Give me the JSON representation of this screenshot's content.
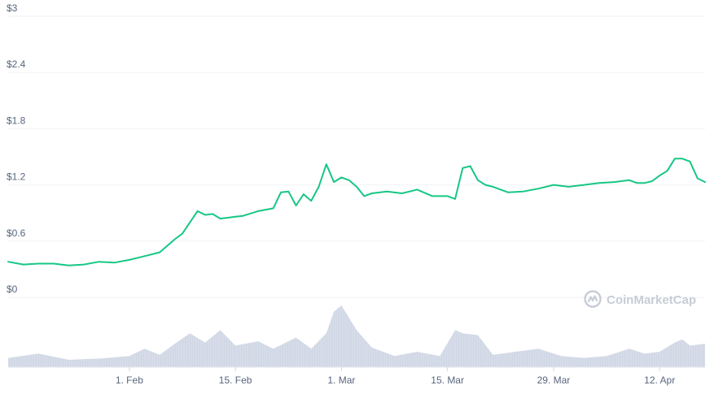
{
  "watermark": {
    "text": "CoinMarketCap"
  },
  "colors": {
    "line": "#16c784",
    "volume": "#cfd6e4",
    "grid": "#eff2f5",
    "label": "#58667e",
    "watermark": "#c7cdd6"
  },
  "chart_data": {
    "type": "line",
    "title": "",
    "xlabel": "",
    "ylabel": "",
    "ylim": [
      0,
      3
    ],
    "y_ticks": [
      "$3",
      "$2.4",
      "$1.8",
      "$1.2",
      "$0.6",
      "$0"
    ],
    "x_range": [
      "2021-01-16",
      "2021-04-18"
    ],
    "x_ticks": [
      {
        "date": "2021-02-01",
        "label": "1. Feb"
      },
      {
        "date": "2021-02-15",
        "label": "15. Feb"
      },
      {
        "date": "2021-03-01",
        "label": "1. Mar"
      },
      {
        "date": "2021-03-15",
        "label": "15. Mar"
      },
      {
        "date": "2021-03-29",
        "label": "29. Mar"
      },
      {
        "date": "2021-04-12",
        "label": "12. Apr"
      }
    ],
    "grid": true,
    "series": [
      {
        "name": "",
        "x": [
          "2021-01-16",
          "2021-01-18",
          "2021-01-20",
          "2021-01-22",
          "2021-01-24",
          "2021-01-26",
          "2021-01-28",
          "2021-01-30",
          "2021-02-01",
          "2021-02-03",
          "2021-02-05",
          "2021-02-07",
          "2021-02-08",
          "2021-02-09",
          "2021-02-10",
          "2021-02-11",
          "2021-02-12",
          "2021-02-13",
          "2021-02-14",
          "2021-02-15",
          "2021-02-16",
          "2021-02-18",
          "2021-02-20",
          "2021-02-21",
          "2021-02-22",
          "2021-02-23",
          "2021-02-24",
          "2021-02-25",
          "2021-02-26",
          "2021-02-27",
          "2021-02-28",
          "2021-03-01",
          "2021-03-02",
          "2021-03-03",
          "2021-03-04",
          "2021-03-05",
          "2021-03-07",
          "2021-03-09",
          "2021-03-11",
          "2021-03-13",
          "2021-03-15",
          "2021-03-16",
          "2021-03-17",
          "2021-03-18",
          "2021-03-19",
          "2021-03-20",
          "2021-03-21",
          "2021-03-23",
          "2021-03-25",
          "2021-03-27",
          "2021-03-29",
          "2021-03-31",
          "2021-04-02",
          "2021-04-04",
          "2021-04-06",
          "2021-04-08",
          "2021-04-09",
          "2021-04-10",
          "2021-04-11",
          "2021-04-12",
          "2021-04-13",
          "2021-04-14",
          "2021-04-15",
          "2021-04-16",
          "2021-04-17",
          "2021-04-18"
        ],
        "y": [
          0.38,
          0.35,
          0.36,
          0.36,
          0.34,
          0.35,
          0.38,
          0.37,
          0.4,
          0.44,
          0.48,
          0.62,
          0.68,
          0.8,
          0.92,
          0.88,
          0.89,
          0.84,
          0.85,
          0.86,
          0.87,
          0.92,
          0.95,
          1.12,
          1.13,
          0.98,
          1.1,
          1.03,
          1.18,
          1.42,
          1.23,
          1.28,
          1.25,
          1.18,
          1.08,
          1.11,
          1.13,
          1.11,
          1.15,
          1.08,
          1.08,
          1.05,
          1.38,
          1.4,
          1.25,
          1.2,
          1.18,
          1.12,
          1.13,
          1.16,
          1.2,
          1.18,
          1.2,
          1.22,
          1.23,
          1.25,
          1.22,
          1.22,
          1.24,
          1.3,
          1.35,
          1.48,
          1.48,
          1.45,
          1.27,
          1.23
        ]
      }
    ],
    "volume": {
      "x": [
        "2021-01-16",
        "2021-01-20",
        "2021-01-24",
        "2021-01-28",
        "2021-02-01",
        "2021-02-03",
        "2021-02-05",
        "2021-02-07",
        "2021-02-09",
        "2021-02-11",
        "2021-02-13",
        "2021-02-15",
        "2021-02-18",
        "2021-02-20",
        "2021-02-23",
        "2021-02-25",
        "2021-02-27",
        "2021-02-28",
        "2021-03-01",
        "2021-03-03",
        "2021-03-05",
        "2021-03-08",
        "2021-03-11",
        "2021-03-14",
        "2021-03-16",
        "2021-03-17",
        "2021-03-19",
        "2021-03-21",
        "2021-03-24",
        "2021-03-27",
        "2021-03-30",
        "2021-04-02",
        "2021-04-05",
        "2021-04-08",
        "2021-04-10",
        "2021-04-12",
        "2021-04-14",
        "2021-04-15",
        "2021-04-16",
        "2021-04-18"
      ],
      "y": [
        0.15,
        0.22,
        0.12,
        0.14,
        0.18,
        0.3,
        0.2,
        0.38,
        0.55,
        0.4,
        0.6,
        0.35,
        0.42,
        0.3,
        0.48,
        0.3,
        0.55,
        0.9,
        1.0,
        0.6,
        0.32,
        0.18,
        0.25,
        0.18,
        0.6,
        0.55,
        0.52,
        0.2,
        0.25,
        0.3,
        0.18,
        0.15,
        0.18,
        0.3,
        0.22,
        0.25,
        0.4,
        0.45,
        0.35,
        0.38
      ]
    }
  }
}
